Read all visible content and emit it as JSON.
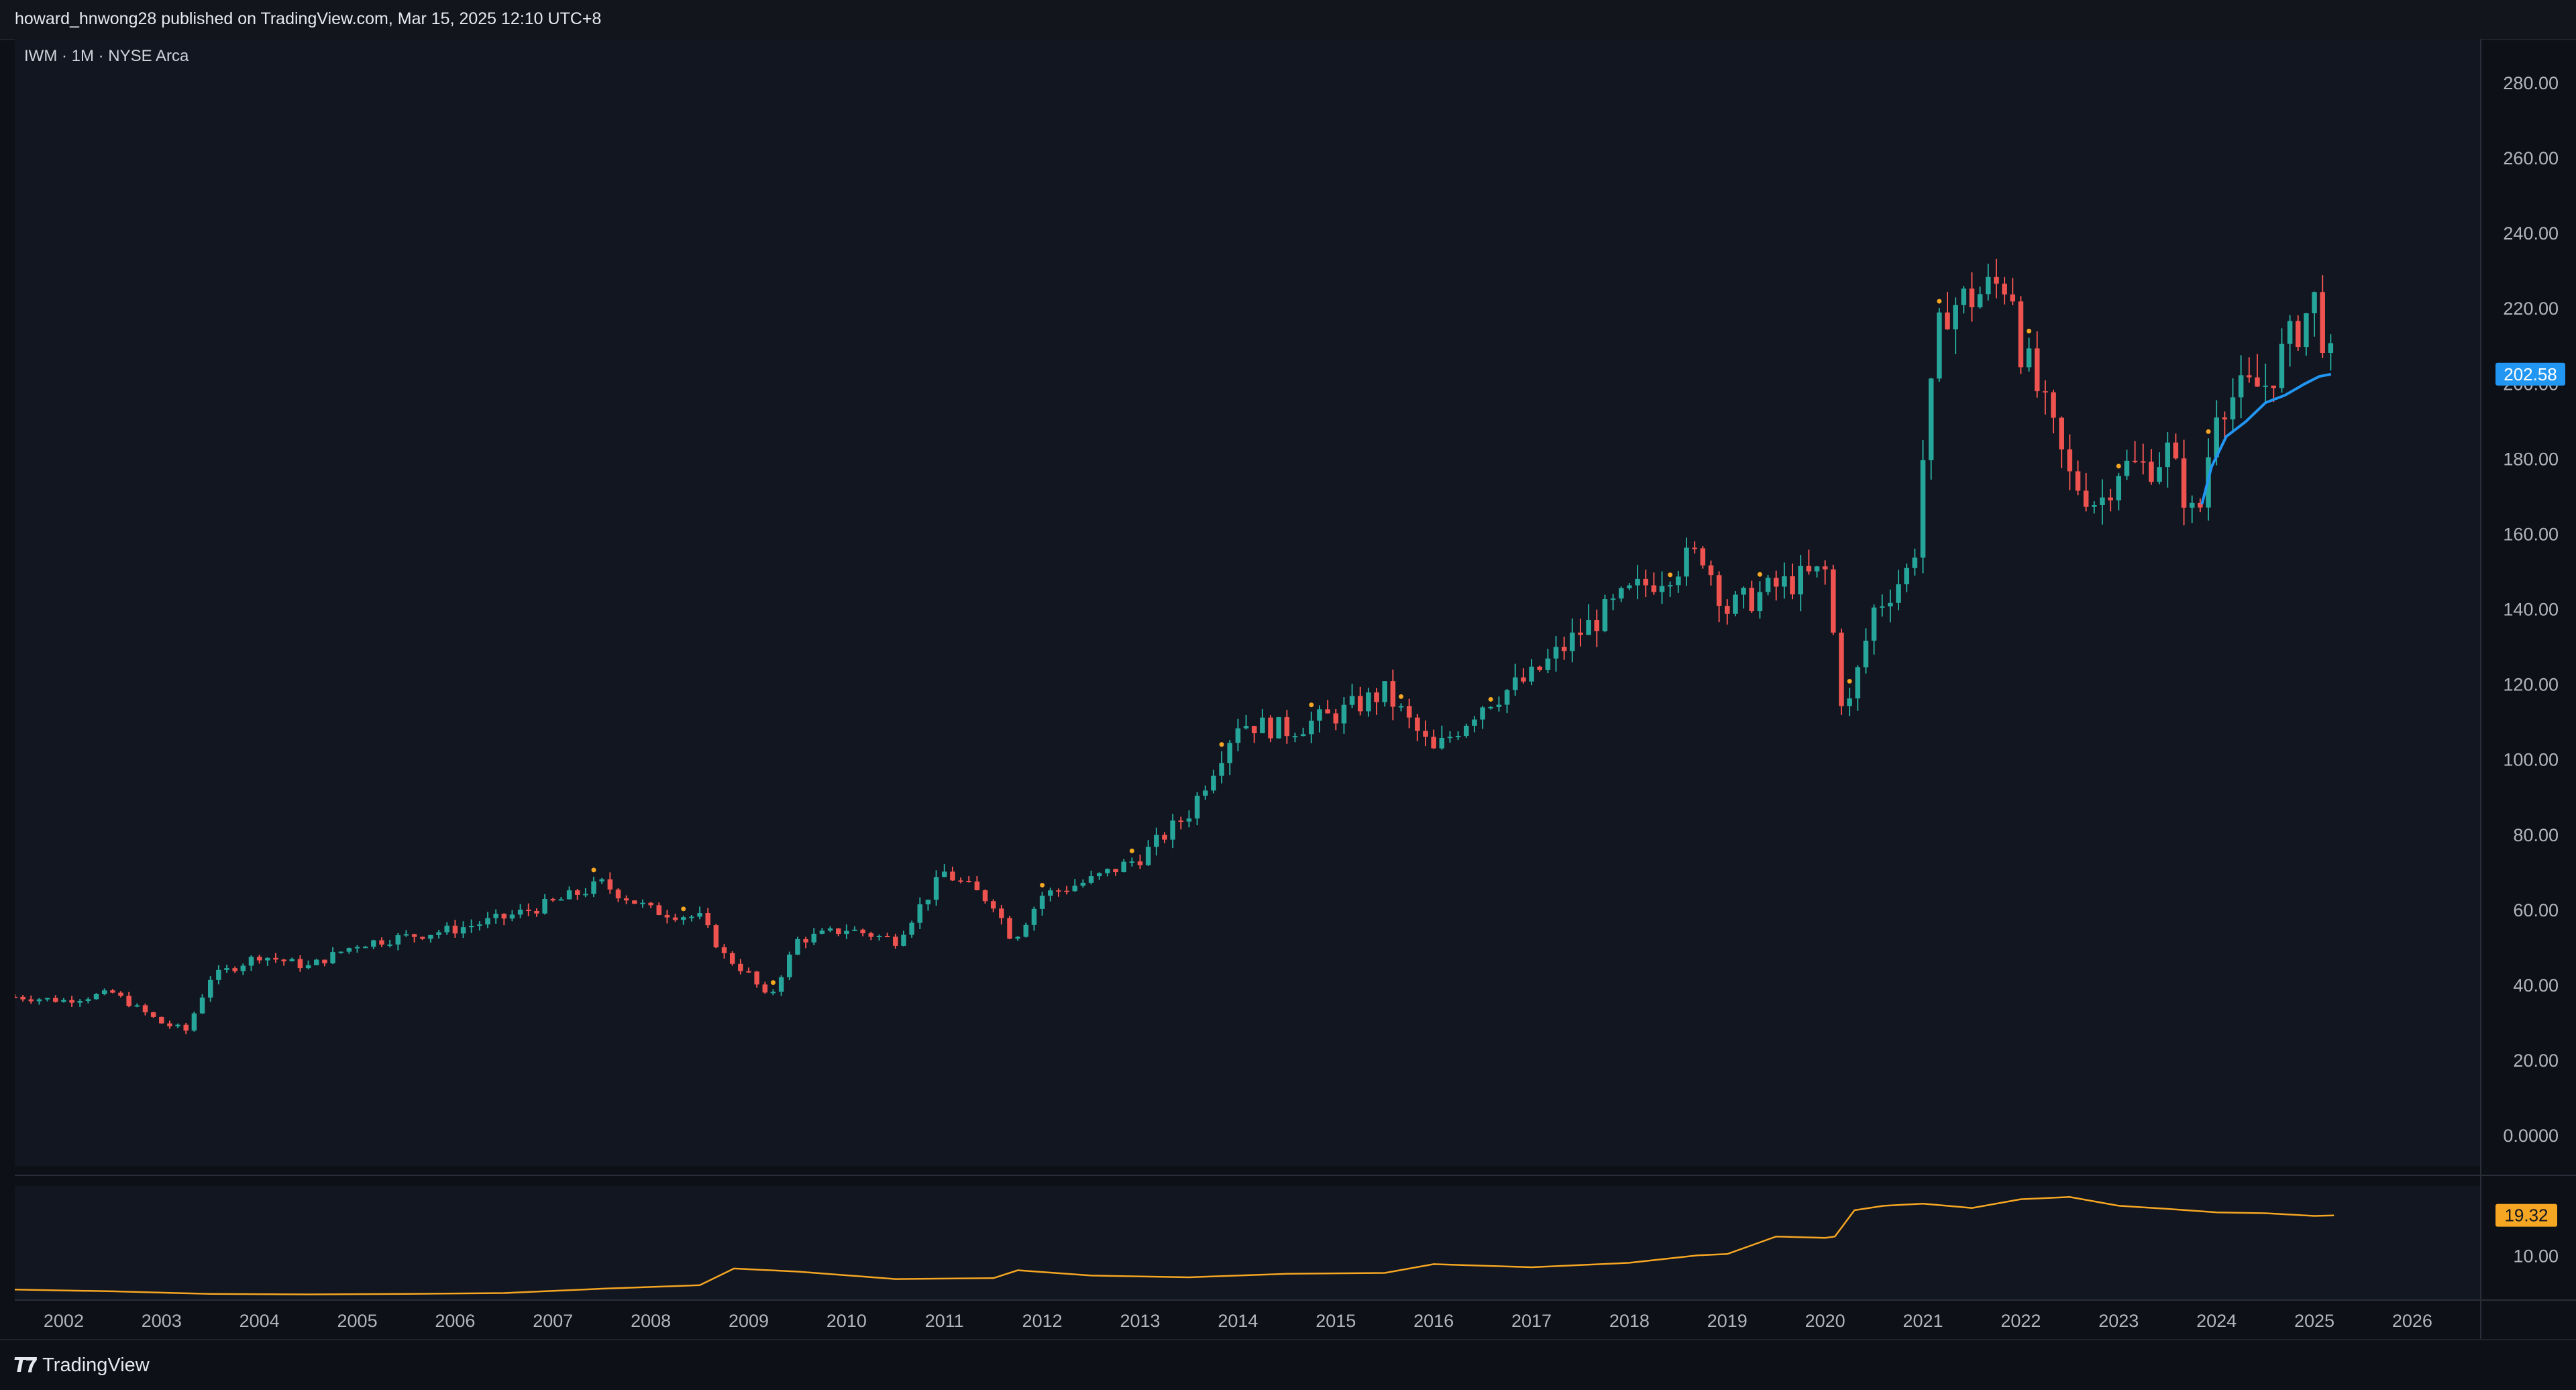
{
  "header": {
    "published": "howard_hnwong28 published on TradingView.com, Mar 15, 2025 12:10 UTC+8"
  },
  "chart": {
    "symbol_line": "IWM · 1M · NYSE Arca"
  },
  "footer": {
    "brand": "TradingView"
  },
  "colors": {
    "up": "#26a69a",
    "down": "#ef5350",
    "ma": "#2196f3",
    "dot": "#f5a623",
    "indicator": "#f5a623",
    "price_tag": "#2196f3",
    "indicator_tag": "#f5a623"
  },
  "chart_data": [
    {
      "type": "line",
      "subtype": "monthly-candlestick-approximation",
      "x": [
        2001.5,
        2002.0,
        2002.5,
        2003.0,
        2003.25,
        2003.5,
        2004.0,
        2004.5,
        2005.0,
        2005.5,
        2006.0,
        2006.5,
        2007.0,
        2007.5,
        2008.0,
        2008.5,
        2008.75,
        2009.0,
        2009.2,
        2009.5,
        2010.0,
        2010.5,
        2011.0,
        2011.5,
        2011.7,
        2012.0,
        2012.5,
        2013.0,
        2013.5,
        2014.0,
        2014.5,
        2015.0,
        2015.5,
        2016.0,
        2016.5,
        2017.0,
        2017.5,
        2018.0,
        2018.5,
        2018.75,
        2019.0,
        2019.5,
        2020.0,
        2020.2,
        2020.5,
        2020.9,
        2021.0,
        2021.2,
        2021.5,
        2021.9,
        2022.0,
        2022.5,
        2022.8,
        2023.0,
        2023.3,
        2023.5,
        2023.8,
        2024.0,
        2024.5,
        2024.9,
        2025.0,
        2025.17
      ],
      "y": [
        37,
        36,
        38,
        30,
        28,
        42,
        48,
        45,
        51,
        53,
        55,
        58,
        62,
        67,
        60,
        58,
        48,
        43,
        36,
        52,
        55,
        52,
        70,
        62,
        52,
        64,
        68,
        74,
        86,
        110,
        108,
        112,
        118,
        102,
        115,
        122,
        134,
        144,
        152,
        155,
        140,
        146,
        150,
        110,
        140,
        152,
        180,
        220,
        223,
        228,
        210,
        175,
        168,
        178,
        178,
        182,
        162,
        195,
        200,
        218,
        222,
        205
      ],
      "ylim": [
        0,
        280
      ],
      "y_ticks": [
        "280.00",
        "260.00",
        "240.00",
        "220.00",
        "200.00",
        "180.00",
        "160.00",
        "140.00",
        "120.00",
        "100.00",
        "80.00",
        "60.00",
        "40.00",
        "20.00",
        "0.0000"
      ],
      "x_ticks": [
        "2002",
        "2003",
        "2004",
        "2005",
        "2006",
        "2007",
        "2008",
        "2009",
        "2010",
        "2011",
        "2012",
        "2013",
        "2014",
        "2015",
        "2016",
        "2017",
        "2018",
        "2019",
        "2020",
        "2021",
        "2022",
        "2023",
        "2024",
        "2025",
        "2026"
      ],
      "last_price_label": "202.58",
      "moving_average": {
        "x": [
          2023.85,
          2023.95,
          2024.1,
          2024.3,
          2024.5,
          2024.7,
          2024.9,
          2025.05,
          2025.17
        ],
        "y": [
          168,
          178,
          186,
          190,
          195,
          197,
          200,
          202,
          202.58
        ]
      }
    },
    {
      "type": "line",
      "x": [
        2001.5,
        2002.5,
        2003.5,
        2004.5,
        2005.5,
        2006.5,
        2007.5,
        2008.5,
        2008.85,
        2009.5,
        2010.5,
        2011.5,
        2011.75,
        2012.5,
        2013.5,
        2014.5,
        2015.5,
        2016.0,
        2017.0,
        2018.0,
        2018.7,
        2019.0,
        2019.5,
        2020.0,
        2020.1,
        2020.3,
        2020.6,
        2021.0,
        2021.5,
        2022.0,
        2022.5,
        2023.0,
        2023.5,
        2024.0,
        2024.5,
        2025.0,
        2025.2
      ],
      "y": [
        2.4,
        2.0,
        1.4,
        1.3,
        1.4,
        1.6,
        2.6,
        3.4,
        7.2,
        6.5,
        4.8,
        5.0,
        6.8,
        5.6,
        5.2,
        6.0,
        6.2,
        8.2,
        7.5,
        8.5,
        10.2,
        10.5,
        14.5,
        14.2,
        14.5,
        20.5,
        21.5,
        22.0,
        21.0,
        23.0,
        23.5,
        21.5,
        20.8,
        20.0,
        19.8,
        19.2,
        19.32
      ],
      "y_ticks": [
        "10.00"
      ],
      "last_value_label": "19.32"
    }
  ]
}
